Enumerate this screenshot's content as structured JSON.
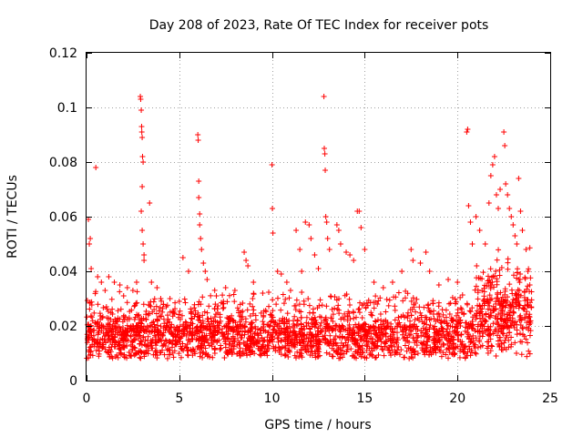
{
  "chart_data": {
    "type": "scatter",
    "title": "Day 208 of 2023, Rate Of TEC Index for receiver pots",
    "xlabel": "GPS time / hours",
    "ylabel": "ROTI / TECUs",
    "xlim": [
      0,
      25
    ],
    "ylim": [
      0,
      0.12
    ],
    "xticks": [
      0,
      5,
      10,
      15,
      20,
      25
    ],
    "yticks": [
      0,
      0.02,
      0.04,
      0.06,
      0.08,
      0.1,
      0.12
    ],
    "xtick_labels": [
      "0",
      "5",
      "10",
      "15",
      "20",
      "25"
    ],
    "ytick_labels": [
      "0",
      "0.02",
      "0.04",
      "0.06",
      "0.08",
      "0.1",
      "0.12"
    ],
    "grid": true,
    "marker": "+",
    "color": "#ff0000",
    "x_coverage": [
      0,
      24
    ],
    "series": [
      {
        "points": [
          [
            0.1,
            0.059
          ],
          [
            0.15,
            0.05
          ],
          [
            0.2,
            0.052
          ],
          [
            0.25,
            0.041
          ],
          [
            0.5,
            0.078
          ],
          [
            0.6,
            0.038
          ],
          [
            0.8,
            0.036
          ],
          [
            1.0,
            0.033
          ],
          [
            1.2,
            0.038
          ],
          [
            1.5,
            0.036
          ],
          [
            1.8,
            0.035
          ],
          [
            2.0,
            0.031
          ],
          [
            2.2,
            0.034
          ],
          [
            2.5,
            0.033
          ],
          [
            2.7,
            0.036
          ],
          [
            2.9,
            0.104
          ],
          [
            2.92,
            0.103
          ],
          [
            2.95,
            0.099
          ],
          [
            2.97,
            0.093
          ],
          [
            2.98,
            0.091
          ],
          [
            3.0,
            0.089
          ],
          [
            3.02,
            0.082
          ],
          [
            3.05,
            0.08
          ],
          [
            3.0,
            0.071
          ],
          [
            2.95,
            0.062
          ],
          [
            3.0,
            0.055
          ],
          [
            3.05,
            0.05
          ],
          [
            3.1,
            0.046
          ],
          [
            3.1,
            0.044
          ],
          [
            3.4,
            0.065
          ],
          [
            3.5,
            0.036
          ],
          [
            3.8,
            0.034
          ],
          [
            4.0,
            0.03
          ],
          [
            4.5,
            0.03
          ],
          [
            5.0,
            0.029
          ],
          [
            5.2,
            0.045
          ],
          [
            5.5,
            0.04
          ],
          [
            6.0,
            0.09
          ],
          [
            6.02,
            0.088
          ],
          [
            6.05,
            0.073
          ],
          [
            6.05,
            0.067
          ],
          [
            6.1,
            0.061
          ],
          [
            6.1,
            0.057
          ],
          [
            6.15,
            0.052
          ],
          [
            6.2,
            0.048
          ],
          [
            6.3,
            0.043
          ],
          [
            6.4,
            0.04
          ],
          [
            6.5,
            0.037
          ],
          [
            7.0,
            0.031
          ],
          [
            7.5,
            0.034
          ],
          [
            8.0,
            0.033
          ],
          [
            8.5,
            0.047
          ],
          [
            8.6,
            0.044
          ],
          [
            8.7,
            0.042
          ],
          [
            9.0,
            0.036
          ],
          [
            9.5,
            0.032
          ],
          [
            10.0,
            0.079
          ],
          [
            10.02,
            0.063
          ],
          [
            10.05,
            0.054
          ],
          [
            10.3,
            0.04
          ],
          [
            10.5,
            0.039
          ],
          [
            10.8,
            0.036
          ],
          [
            11.0,
            0.033
          ],
          [
            11.3,
            0.055
          ],
          [
            11.5,
            0.048
          ],
          [
            11.6,
            0.04
          ],
          [
            11.8,
            0.058
          ],
          [
            12.0,
            0.057
          ],
          [
            12.1,
            0.052
          ],
          [
            12.3,
            0.046
          ],
          [
            12.5,
            0.041
          ],
          [
            12.8,
            0.104
          ],
          [
            12.82,
            0.085
          ],
          [
            12.85,
            0.083
          ],
          [
            12.87,
            0.077
          ],
          [
            12.9,
            0.06
          ],
          [
            12.95,
            0.058
          ],
          [
            13.0,
            0.052
          ],
          [
            13.1,
            0.048
          ],
          [
            13.5,
            0.057
          ],
          [
            13.6,
            0.055
          ],
          [
            13.7,
            0.05
          ],
          [
            14.0,
            0.047
          ],
          [
            14.2,
            0.046
          ],
          [
            14.4,
            0.044
          ],
          [
            14.6,
            0.062
          ],
          [
            14.7,
            0.062
          ],
          [
            14.8,
            0.056
          ],
          [
            15.0,
            0.048
          ],
          [
            15.5,
            0.036
          ],
          [
            16.0,
            0.034
          ],
          [
            16.5,
            0.036
          ],
          [
            17.0,
            0.04
          ],
          [
            17.5,
            0.048
          ],
          [
            17.6,
            0.044
          ],
          [
            18.0,
            0.043
          ],
          [
            18.3,
            0.047
          ],
          [
            18.5,
            0.04
          ],
          [
            19.0,
            0.035
          ],
          [
            19.5,
            0.037
          ],
          [
            20.0,
            0.036
          ],
          [
            20.5,
            0.091
          ],
          [
            20.55,
            0.092
          ],
          [
            20.6,
            0.064
          ],
          [
            20.7,
            0.058
          ],
          [
            20.8,
            0.05
          ],
          [
            21.0,
            0.06
          ],
          [
            21.2,
            0.055
          ],
          [
            21.5,
            0.05
          ],
          [
            21.7,
            0.065
          ],
          [
            21.8,
            0.075
          ],
          [
            21.9,
            0.079
          ],
          [
            22.0,
            0.082
          ],
          [
            22.1,
            0.068
          ],
          [
            22.2,
            0.063
          ],
          [
            22.3,
            0.07
          ],
          [
            22.5,
            0.091
          ],
          [
            22.55,
            0.086
          ],
          [
            22.6,
            0.072
          ],
          [
            22.7,
            0.068
          ],
          [
            22.8,
            0.063
          ],
          [
            22.9,
            0.06
          ],
          [
            23.0,
            0.057
          ],
          [
            23.1,
            0.053
          ],
          [
            23.2,
            0.05
          ],
          [
            23.3,
            0.074
          ],
          [
            23.4,
            0.062
          ],
          [
            23.5,
            0.055
          ],
          [
            23.7,
            0.048
          ],
          [
            23.8,
            0.04
          ],
          [
            23.9,
            0.035
          ]
        ]
      }
    ]
  }
}
